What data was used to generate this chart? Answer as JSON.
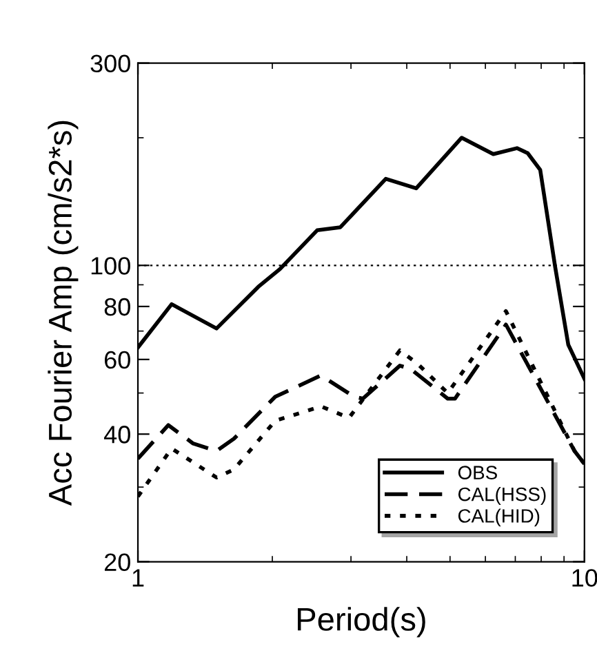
{
  "chart_data": {
    "type": "line",
    "xlabel": "Period(s)",
    "ylabel": "Acc Fourier Amp (cm/s2*s)",
    "log": "xy",
    "xlim": [
      1,
      10
    ],
    "xticks": [
      1,
      10
    ],
    "ylim": [
      20,
      300
    ],
    "yticks": [
      20,
      40,
      60,
      80,
      100,
      300
    ],
    "legend": "bottom right",
    "grid": false,
    "ref_lines": [
      {
        "axis": "y",
        "value": 100,
        "line_style": "dotted",
        "color": "#000000"
      }
    ],
    "series": [
      {
        "name": "OBS",
        "color": "#000000",
        "line_style": "solid",
        "x": [
          1,
          1.19,
          1.5,
          1.86,
          2.08,
          2.52,
          2.84,
          3.59,
          4.2,
          5.31,
          6.25,
          7.06,
          7.46,
          7.96,
          8.6,
          9.2,
          10
        ],
        "values": [
          64,
          81,
          71,
          89,
          98,
          121,
          123,
          160,
          152,
          200,
          183,
          189,
          184,
          168,
          99,
          65,
          54
        ]
      },
      {
        "name": "CAL(HSS)",
        "color": "#000000",
        "line_style": "dashed",
        "x": [
          1,
          1.17,
          1.33,
          1.5,
          1.64,
          2.03,
          2.57,
          3.05,
          3.19,
          3.86,
          4.08,
          4.94,
          5.13,
          6.67,
          9.5,
          10
        ],
        "values": [
          35,
          42,
          38,
          36.5,
          39,
          49,
          55,
          49,
          48.5,
          58,
          57,
          48.5,
          48.5,
          72.5,
          36.5,
          34
        ]
      },
      {
        "name": "CAL(HID)",
        "color": "#000000",
        "line_style": "dotted",
        "x": [
          1,
          1.19,
          1.5,
          1.64,
          2.03,
          2.57,
          2.97,
          3.86,
          4.23,
          4.94,
          6.67,
          9.5,
          10
        ],
        "values": [
          28.5,
          37,
          31.6,
          33,
          43,
          46.5,
          43.7,
          63,
          58.6,
          50,
          78,
          36.5,
          34
        ]
      }
    ]
  }
}
